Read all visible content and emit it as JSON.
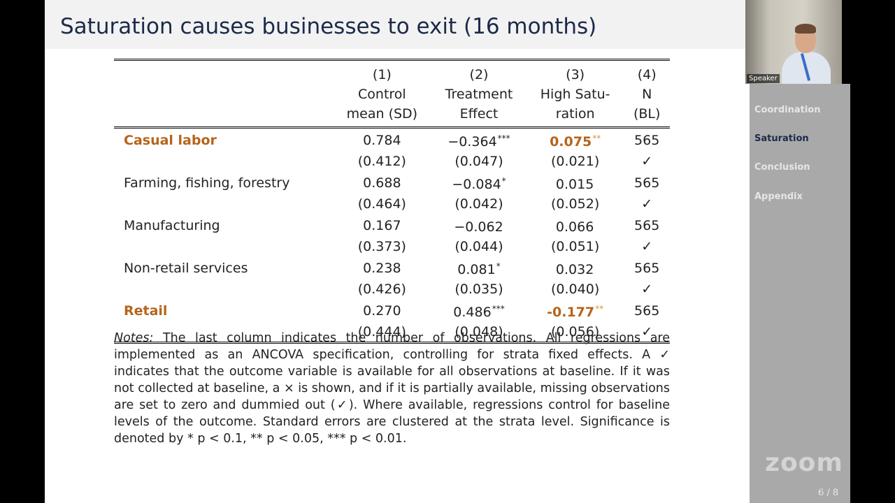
{
  "slide": {
    "title": "Saturation causes businesses to exit (16 months)"
  },
  "table": {
    "headers": [
      {
        "num": "(1)",
        "line1": "Control",
        "line2": "mean (SD)"
      },
      {
        "num": "(2)",
        "line1": "Treatment",
        "line2": "Effect"
      },
      {
        "num": "(3)",
        "line1": "High Satu-",
        "line2": "ration"
      },
      {
        "num": "(4)",
        "line1": "N",
        "line2": "(BL)"
      }
    ],
    "rows": [
      {
        "label": "Casual labor",
        "mean": "0.784",
        "sd": "(0.412)",
        "te": "−0.364",
        "te_stars": "***",
        "te_se": "(0.047)",
        "hs": "0.075",
        "hs_stars": "**",
        "hs_se": "(0.021)",
        "n": "565",
        "bl": "✓"
      },
      {
        "label": "Farming, fishing, forestry",
        "mean": "0.688",
        "sd": "(0.464)",
        "te": "−0.084",
        "te_stars": "*",
        "te_se": "(0.042)",
        "hs": "0.015",
        "hs_stars": "",
        "hs_se": "(0.052)",
        "n": "565",
        "bl": "✓"
      },
      {
        "label": "Manufacturing",
        "mean": "0.167",
        "sd": "(0.373)",
        "te": "−0.062",
        "te_stars": "",
        "te_se": "(0.044)",
        "hs": "0.066",
        "hs_stars": "",
        "hs_se": "(0.051)",
        "n": "565",
        "bl": "✓"
      },
      {
        "label": "Non-retail services",
        "mean": "0.238",
        "sd": "(0.426)",
        "te": "0.081",
        "te_stars": "*",
        "te_se": "(0.035)",
        "hs": "0.032",
        "hs_stars": "",
        "hs_se": "(0.040)",
        "n": "565",
        "bl": "✓"
      },
      {
        "label": "Retail",
        "mean": "0.270",
        "sd": "(0.444)",
        "te": "0.486",
        "te_stars": "***",
        "te_se": "(0.048)",
        "hs": "-0.177",
        "hs_stars": "**",
        "hs_se": "(0.056)",
        "n": "565",
        "bl": "✓"
      }
    ]
  },
  "notes": {
    "label": "Notes:",
    "text": " The last column indicates the number of observations. All regressions are implemented as an ANCOVA specification, controlling for strata fixed effects. A ✓ indicates that the outcome variable is available for all observations at baseline. If it was not collected at baseline, a × is shown, and if it is partially available, missing observations are set to zero and dummied out (✓). Where available, regressions control for baseline levels of the outcome. Standard errors are clustered at the strata level. Significance is denoted by * p < 0.1, ** p < 0.05, *** p < 0.01."
  },
  "sidebar": {
    "items": [
      {
        "label": "Coordination",
        "active": false
      },
      {
        "label": "Saturation",
        "active": true
      },
      {
        "label": "Conclusion",
        "active": false
      },
      {
        "label": "Appendix",
        "active": false
      }
    ],
    "page": "6 / 8"
  },
  "zoom": {
    "logo": "zoom",
    "speaker_label": "Speaker"
  }
}
